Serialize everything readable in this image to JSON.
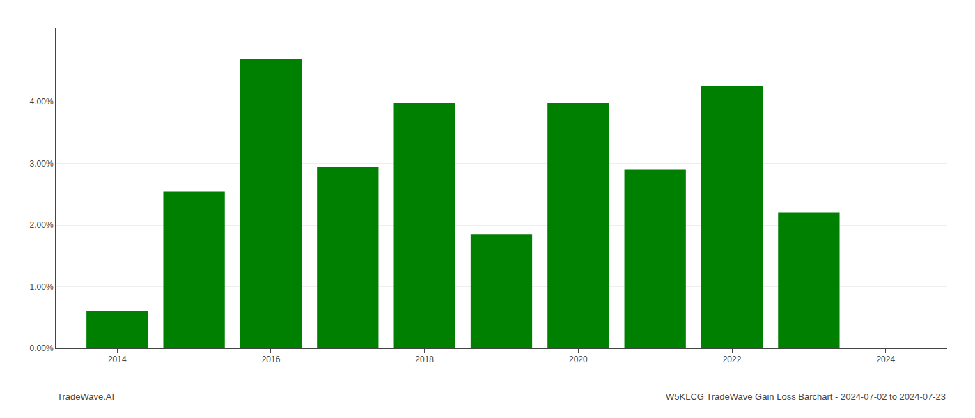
{
  "chart_data": {
    "type": "bar",
    "x": [
      2014,
      2015,
      2016,
      2017,
      2018,
      2019,
      2020,
      2021,
      2022,
      2023
    ],
    "values": [
      0.006,
      0.0255,
      0.047,
      0.0295,
      0.0398,
      0.0185,
      0.0398,
      0.029,
      0.0425,
      0.022
    ],
    "color": "#008000",
    "xlim": [
      2013.2,
      2024.8
    ],
    "xticks": [
      2014,
      2016,
      2018,
      2020,
      2022,
      2024
    ],
    "ylim": [
      0,
      0.052
    ],
    "yticks": [
      {
        "value": 0.0,
        "label": "0.00%"
      },
      {
        "value": 0.01,
        "label": "1.00%"
      },
      {
        "value": 0.02,
        "label": "2.00%"
      },
      {
        "value": 0.03,
        "label": "3.00%"
      },
      {
        "value": 0.04,
        "label": "4.00%"
      }
    ],
    "grid": true,
    "annotations": [
      "TradeWave.AI",
      "W5KLCG TradeWave Gain Loss Barchart - 2024-07-02 to 2024-07-23"
    ]
  }
}
